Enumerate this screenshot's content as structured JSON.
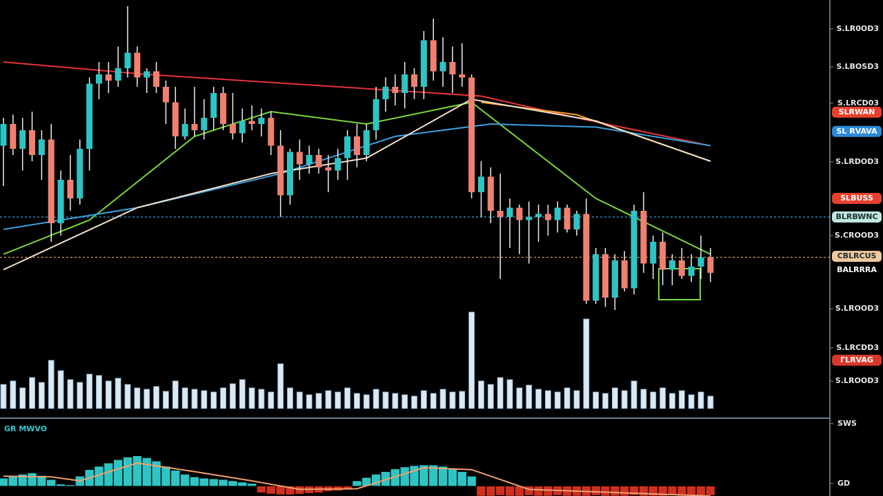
{
  "chart_data": [
    {
      "type": "candlestick",
      "up_color": "#2ec4c4",
      "down_color": "#f08070",
      "wick_color": "#f0f0f0",
      "ylim": [
        -33,
        100
      ],
      "yticks": [
        {
          "value": 90.7,
          "label": "S.LR0OD3"
        },
        {
          "value": 78.4,
          "label": "S.LBOSD3"
        },
        {
          "value": 66.7,
          "label": "S.LRCD03"
        },
        {
          "value": 47.8,
          "label": "S.LRDOD3"
        },
        {
          "value": 24,
          "label": "S.CROOD3"
        },
        {
          "value": 0.4,
          "label": "S.LROOD3"
        },
        {
          "value": -12.2,
          "label": "S.LRCDD3"
        },
        {
          "value": -22.9,
          "label": "S.LROOD3"
        }
      ],
      "open": [
        53,
        60,
        52,
        58,
        50,
        55,
        28,
        42,
        36,
        52,
        73,
        76,
        74,
        78,
        83,
        75,
        77,
        72,
        67,
        56,
        60,
        58,
        62,
        70,
        60,
        57,
        61,
        60,
        62,
        53,
        37,
        51,
        47,
        50,
        46,
        45,
        49,
        56,
        50,
        58,
        68,
        72,
        70,
        76,
        72,
        87,
        77,
        80,
        76,
        75,
        38,
        43,
        32,
        30,
        33,
        29,
        30,
        31,
        29,
        33,
        26,
        31,
        3,
        18,
        4,
        16,
        7,
        32,
        15,
        22,
        13,
        16,
        11,
        14,
        17
      ],
      "high": [
        62,
        63,
        62,
        64,
        58,
        60,
        45,
        50,
        55,
        75,
        80,
        80,
        85,
        98,
        85,
        78,
        80,
        74,
        72,
        65,
        72,
        68,
        72,
        72,
        70,
        65,
        66,
        65,
        64,
        58,
        52,
        55,
        53,
        52,
        50,
        52,
        58,
        60,
        60,
        72,
        75,
        76,
        80,
        78,
        90,
        94,
        88,
        85,
        86,
        76,
        48,
        46,
        44,
        36,
        34,
        35,
        34,
        34,
        35,
        34,
        32,
        36,
        20,
        20,
        18,
        19,
        34,
        38,
        24,
        25,
        18,
        20,
        18,
        24,
        20
      ],
      "low": [
        40,
        50,
        45,
        48,
        42,
        22,
        24,
        32,
        34,
        45,
        68,
        70,
        72,
        75,
        72,
        70,
        70,
        60,
        52,
        55,
        56,
        55,
        58,
        58,
        55,
        54,
        58,
        56,
        50,
        30,
        34,
        42,
        44,
        44,
        38,
        42,
        42,
        46,
        48,
        55,
        64,
        66,
        65,
        68,
        68,
        74,
        72,
        70,
        72,
        36,
        30,
        28,
        10,
        20,
        18,
        15,
        22,
        24,
        25,
        25,
        24,
        2,
        2,
        1,
        0,
        6,
        5,
        12,
        10,
        8,
        8,
        10,
        9,
        10,
        9
      ],
      "close": [
        60,
        52,
        58,
        50,
        55,
        28,
        42,
        36,
        52,
        73,
        76,
        74,
        78,
        83,
        75,
        77,
        72,
        67,
        56,
        60,
        58,
        62,
        70,
        60,
        57,
        61,
        60,
        62,
        53,
        37,
        51,
        47,
        50,
        46,
        45,
        49,
        56,
        50,
        58,
        68,
        72,
        70,
        76,
        72,
        87,
        77,
        80,
        76,
        75,
        38,
        43,
        32,
        30,
        33,
        29,
        30,
        31,
        29,
        33,
        26,
        31,
        3,
        18,
        4,
        16,
        7,
        32,
        15,
        22,
        13,
        16,
        11,
        14,
        17,
        12
      ],
      "volume": [
        35,
        40,
        30,
        45,
        38,
        70,
        55,
        42,
        38,
        50,
        48,
        40,
        44,
        35,
        30,
        28,
        32,
        25,
        40,
        30,
        28,
        26,
        24,
        30,
        36,
        42,
        30,
        28,
        24,
        65,
        30,
        24,
        20,
        22,
        26,
        24,
        30,
        22,
        20,
        28,
        24,
        22,
        20,
        18,
        26,
        22,
        28,
        24,
        25,
        140,
        40,
        35,
        45,
        42,
        30,
        34,
        28,
        26,
        24,
        30,
        26,
        130,
        24,
        22,
        30,
        26,
        40,
        28,
        24,
        30,
        22,
        26,
        20,
        24,
        18
      ],
      "volume_lim": [
        0,
        150
      ],
      "volume_color": "#dce8f2",
      "lines": [
        {
          "color": "#e8323c",
          "x": [
            0,
            15,
            30,
            45,
            50,
            60,
            74
          ],
          "values": [
            80,
            76,
            73,
            70,
            69,
            62,
            53
          ]
        },
        {
          "color": "#f0a030",
          "x": [
            50,
            60,
            74
          ],
          "values": [
            67,
            63,
            48
          ]
        },
        {
          "color": "#7ad83a",
          "x": [
            0,
            9,
            20,
            28,
            38,
            49,
            62,
            74
          ],
          "values": [
            18,
            29,
            56,
            64,
            60,
            67,
            36,
            18
          ]
        },
        {
          "color": "#3aa0e0",
          "x": [
            0,
            14,
            29,
            41,
            51,
            62,
            74
          ],
          "values": [
            26,
            33,
            44,
            56,
            60,
            59,
            53
          ]
        },
        {
          "color": "#f5e0c8",
          "x": [
            0,
            14,
            28,
            38,
            49,
            62,
            74
          ],
          "values": [
            13,
            33,
            44,
            49,
            68,
            61,
            48
          ]
        }
      ],
      "hlines": [
        {
          "value": 30,
          "color": "#3aa0e0"
        },
        {
          "value": 17,
          "color": "#d8a060"
        }
      ],
      "price_tags": [
        {
          "label": "SLRWAN",
          "value": 63.8,
          "color": "#e8402c"
        },
        {
          "label": "SL RVAVA",
          "value": 57.6,
          "color": "#2a8ad8"
        },
        {
          "label": "SLBUSS",
          "value": 36,
          "color": "#e8402c"
        },
        {
          "label": "BLRBWNC",
          "value": 30,
          "color": "#bfe8e0"
        },
        {
          "label": "CBLRCUS",
          "value": 17.3,
          "color": "#f0c8a0"
        },
        {
          "label": "BALRRRA",
          "value": 12.9,
          "color": "#000000"
        },
        {
          "label": "ΓLRVAG",
          "value": -16.2,
          "color": "#d83828"
        }
      ]
    },
    {
      "type": "macd",
      "title": "GR MWVO",
      "ylim": [
        -1.5,
        10
      ],
      "yticks": [
        {
          "value": 9.5,
          "label": "SWS"
        },
        {
          "value": 0.4,
          "label": "GD"
        }
      ],
      "pos_color": "#2ec4c4",
      "neg_color": "#d03020",
      "values": [
        1.2,
        1.5,
        1.8,
        2,
        1.6,
        1,
        0.3,
        0.2,
        1.5,
        2.5,
        3,
        3.5,
        4,
        4.4,
        4.6,
        4.3,
        3.8,
        3,
        2.4,
        1.8,
        1.4,
        1.2,
        1.1,
        1,
        0.8,
        0.6,
        0.4,
        -1,
        -1.2,
        -1.3,
        -1.3,
        -1.2,
        -1.1,
        -1,
        -0.8,
        -0.7,
        -0.5,
        0.8,
        1.3,
        1.8,
        2.2,
        2.6,
        2.9,
        3.1,
        3.2,
        3.2,
        3,
        2.7,
        2.2,
        1.5,
        -1.5,
        -1.5,
        -1.4,
        -1.5,
        -1.5,
        -1.4,
        -1.5,
        -1.5,
        -1.4,
        -1.5,
        -1.5,
        -1.5,
        -1.4,
        -1.5,
        -1.5,
        -1.5,
        -1.4,
        -1.5,
        -1.5,
        -1.5,
        -1.4,
        -1.5,
        -1.5,
        -1.5,
        -1.4
      ],
      "signal": {
        "color": "#f0a070",
        "x": [
          0,
          5,
          8,
          14,
          20,
          26,
          31,
          37,
          44,
          49,
          55,
          74
        ],
        "values": [
          1.5,
          1.4,
          0.8,
          3.5,
          2.2,
          0.8,
          -0.5,
          -0.4,
          2.8,
          2.5,
          -0.5,
          -1.5
        ]
      }
    }
  ]
}
